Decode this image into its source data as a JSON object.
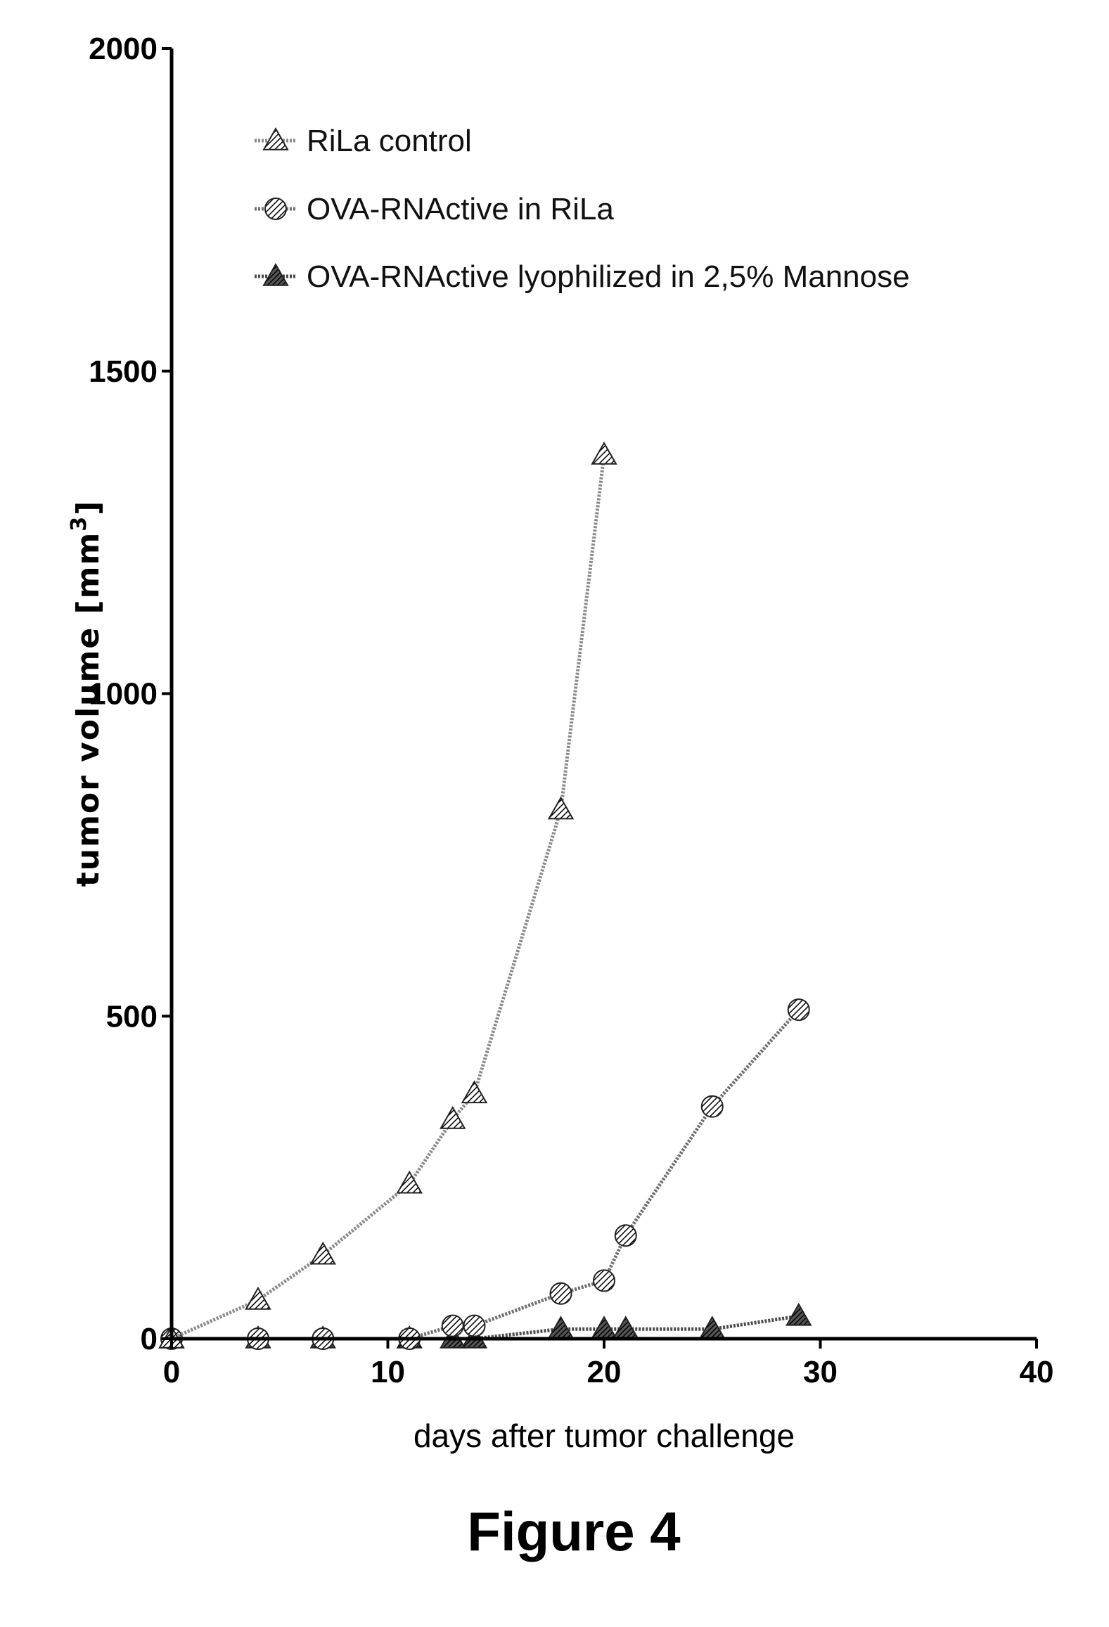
{
  "figure": {
    "caption": "Figure 4"
  },
  "chart_data": {
    "type": "line",
    "xlabel": "days after tumor challenge",
    "ylabel_text": "tumor volume [mm",
    "ylabel_sup": "3",
    "ylabel_close": "]",
    "xlim": [
      0,
      40
    ],
    "ylim": [
      0,
      2000
    ],
    "x_ticks": [
      "0",
      "10",
      "20",
      "30",
      "40"
    ],
    "y_ticks": [
      "0",
      "500",
      "1000",
      "1500",
      "2000"
    ],
    "grid": false,
    "legend_position": "top-left",
    "series": [
      {
        "name": "RiLa control",
        "marker": "triangle",
        "color": "#8a8a8a",
        "x": [
          0,
          4,
          7,
          11,
          13,
          14,
          18,
          20
        ],
        "y": [
          0,
          60,
          130,
          240,
          340,
          380,
          820,
          1370
        ]
      },
      {
        "name": "OVA-RNActive in RiLa",
        "marker": "circle",
        "color": "#6e6e6e",
        "x": [
          0,
          4,
          7,
          11,
          13,
          14,
          18,
          20,
          21,
          25,
          29
        ],
        "y": [
          0,
          0,
          0,
          0,
          20,
          20,
          70,
          90,
          160,
          360,
          510
        ]
      },
      {
        "name": "OVA-RNActive lyophilized in 2,5% Mannose",
        "marker": "triangle-dark",
        "color": "#4a4a4a",
        "x": [
          0,
          4,
          7,
          11,
          13,
          14,
          18,
          20,
          21,
          25,
          29
        ],
        "y": [
          0,
          0,
          0,
          0,
          0,
          0,
          15,
          15,
          15,
          15,
          35
        ]
      }
    ]
  }
}
